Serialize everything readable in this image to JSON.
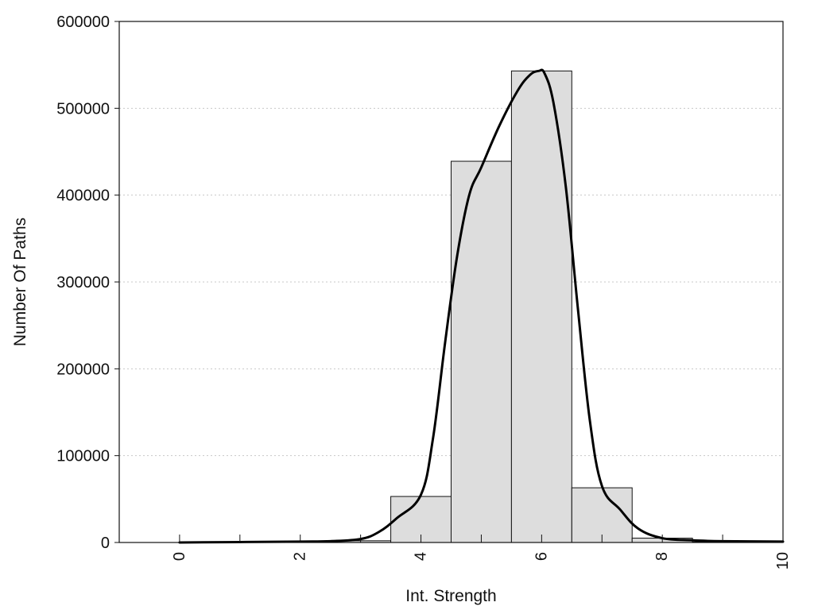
{
  "chart_data": {
    "type": "bar",
    "title": "",
    "xlabel": "Int. Strength",
    "ylabel": "Number Of Paths",
    "xlim": [
      -1,
      10
    ],
    "ylim": [
      0,
      600000
    ],
    "grid": "horizontal dotted",
    "x_ticks": [
      0,
      2,
      4,
      6,
      8,
      10
    ],
    "x_tick_labels": [
      "0",
      "2",
      "4",
      "6",
      "8",
      "10"
    ],
    "y_ticks": [
      0,
      100000,
      200000,
      300000,
      400000,
      500000,
      600000
    ],
    "y_tick_labels": [
      "0",
      "100000",
      "200000",
      "300000",
      "400000",
      "500000",
      "600000"
    ],
    "bars": {
      "x": [
        0,
        1,
        2,
        3,
        4,
        5,
        6,
        7,
        8,
        9
      ],
      "values": [
        0,
        0,
        500,
        2000,
        53000,
        439000,
        543000,
        63000,
        5000,
        500
      ]
    },
    "curve": {
      "x": [
        0,
        1,
        2,
        2.5,
        3,
        3.3,
        3.6,
        4,
        4.2,
        4.4,
        4.6,
        4.8,
        5,
        5.3,
        5.6,
        5.8,
        5.95,
        6.05,
        6.2,
        6.4,
        6.6,
        6.8,
        7,
        7.3,
        7.6,
        8,
        8.5,
        9,
        10
      ],
      "y": [
        0,
        500,
        1000,
        1500,
        4000,
        12000,
        28000,
        55000,
        120000,
        230000,
        330000,
        400000,
        432000,
        480000,
        520000,
        538000,
        543000,
        540000,
        505000,
        410000,
        270000,
        140000,
        65000,
        38000,
        16000,
        5000,
        2500,
        1500,
        1000
      ]
    }
  }
}
